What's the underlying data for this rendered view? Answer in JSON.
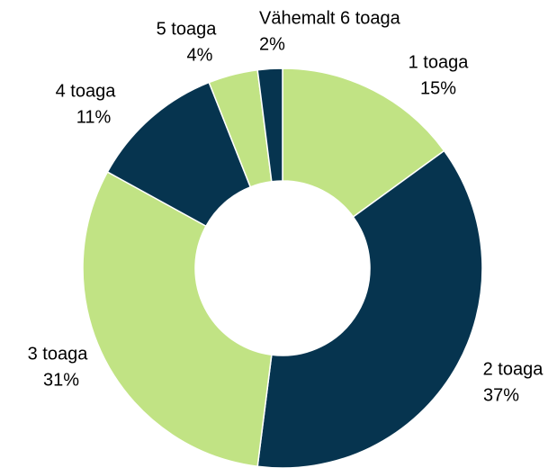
{
  "chart_data": {
    "type": "donut",
    "categories": [
      "1 toaga",
      "2 toaga",
      "3 toaga",
      "4 toaga",
      "5 toaga",
      "Vähemalt 6 toaga"
    ],
    "values": [
      15,
      37,
      31,
      11,
      4,
      2
    ],
    "value_labels": [
      "15%",
      "37%",
      "31%",
      "11%",
      "4%",
      "2%"
    ],
    "colors": [
      "#c1e384",
      "#06344f",
      "#c1e384",
      "#06344f",
      "#c1e384",
      "#06344f"
    ]
  }
}
